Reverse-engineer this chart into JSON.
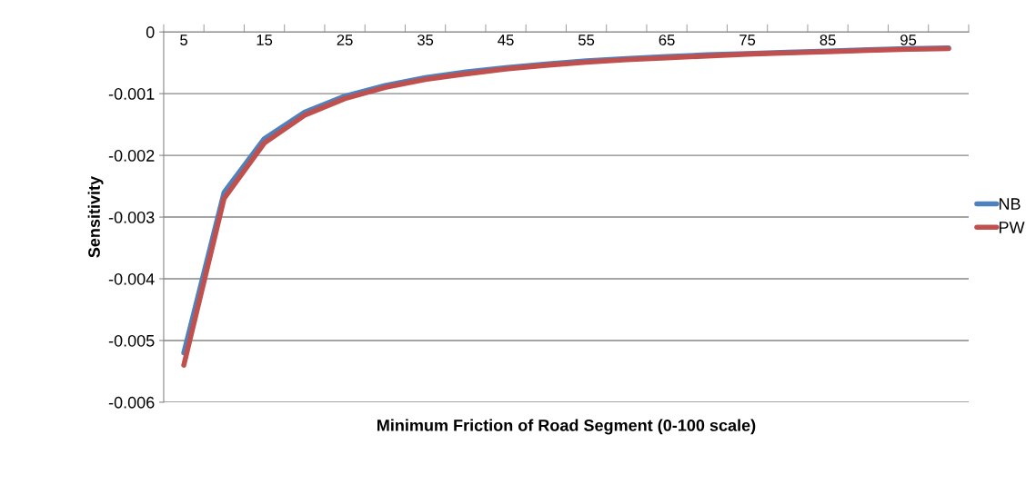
{
  "chart_data": {
    "type": "line",
    "xlabel": "Minimum Friction of Road Segment (0-100 scale)",
    "ylabel": "Sensitivity",
    "categories": [
      "5",
      null,
      "15",
      null,
      "25",
      null,
      "35",
      null,
      "45",
      null,
      "55",
      null,
      "65",
      null,
      "75",
      null,
      "85",
      null,
      "95",
      null
    ],
    "series": [
      {
        "name": "NB",
        "color": "#4f81bd",
        "values": [
          -0.0052,
          -0.0026,
          -0.00173,
          -0.0013,
          -0.00104,
          -0.00087,
          -0.00074,
          -0.00065,
          -0.00058,
          -0.00052,
          -0.00047,
          -0.00043,
          -0.0004,
          -0.00037,
          -0.00035,
          -0.00033,
          -0.00031,
          -0.00029,
          -0.00027,
          -0.00026
        ]
      },
      {
        "name": "PW",
        "color": "#c0504d",
        "values": [
          -0.0054,
          -0.0027,
          -0.0018,
          -0.00135,
          -0.00108,
          -0.0009,
          -0.00077,
          -0.00068,
          -0.0006,
          -0.00054,
          -0.00049,
          -0.00045,
          -0.00042,
          -0.00039,
          -0.00036,
          -0.00034,
          -0.00032,
          -0.0003,
          -0.00028,
          -0.00027
        ]
      }
    ],
    "ylim": [
      -0.006,
      0
    ],
    "yticks": [
      -0.006,
      -0.005,
      -0.004,
      -0.003,
      -0.002,
      -0.001,
      0
    ],
    "grid": "y",
    "legend": "right",
    "marker": "none",
    "line_style": "solid"
  }
}
